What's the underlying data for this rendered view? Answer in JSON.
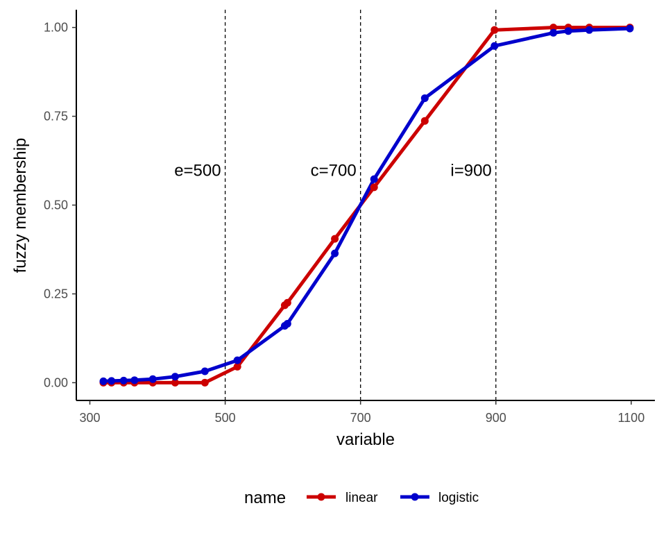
{
  "chart_data": {
    "type": "line",
    "xlabel": "variable",
    "ylabel": "fuzzy membership",
    "xlim": [
      280,
      1135
    ],
    "ylim": [
      -0.05,
      1.05
    ],
    "x_ticks": [
      300,
      500,
      700,
      900,
      1100
    ],
    "x_tick_labels": [
      "300",
      "500",
      "700",
      "900",
      "1100"
    ],
    "y_ticks": [
      0,
      0.25,
      0.5,
      0.75,
      1.0
    ],
    "y_tick_labels": [
      "0.00",
      "0.25",
      "0.50",
      "0.75",
      "1.00"
    ],
    "grid": false,
    "legend": {
      "title": "name",
      "position": "bottom"
    },
    "vlines": [
      {
        "x": 500,
        "label": "e=500"
      },
      {
        "x": 700,
        "label": "c=700"
      },
      {
        "x": 900,
        "label": "i=900"
      }
    ],
    "annotation_y": 0.6,
    "series": [
      {
        "name": "linear",
        "color": "#cc0000",
        "x": [
          320,
          332,
          350,
          366,
          393,
          426,
          470,
          518,
          588,
          592,
          662,
          720,
          795,
          898,
          985,
          1007,
          1038,
          1098
        ],
        "y": [
          0.0,
          0.0,
          0.0,
          0.0,
          0.0,
          0.0,
          0.0,
          0.045,
          0.218,
          0.225,
          0.405,
          0.55,
          0.737,
          0.993,
          1.0,
          1.0,
          1.0,
          1.0
        ]
      },
      {
        "name": "logistic",
        "color": "#0000cc",
        "x": [
          320,
          332,
          350,
          366,
          393,
          426,
          470,
          518,
          588,
          592,
          662,
          720,
          795,
          898,
          985,
          1007,
          1038,
          1098
        ],
        "y": [
          0.004,
          0.005,
          0.006,
          0.007,
          0.01,
          0.017,
          0.032,
          0.063,
          0.16,
          0.166,
          0.364,
          0.573,
          0.801,
          0.948,
          0.985,
          0.99,
          0.993,
          0.997
        ]
      }
    ]
  }
}
